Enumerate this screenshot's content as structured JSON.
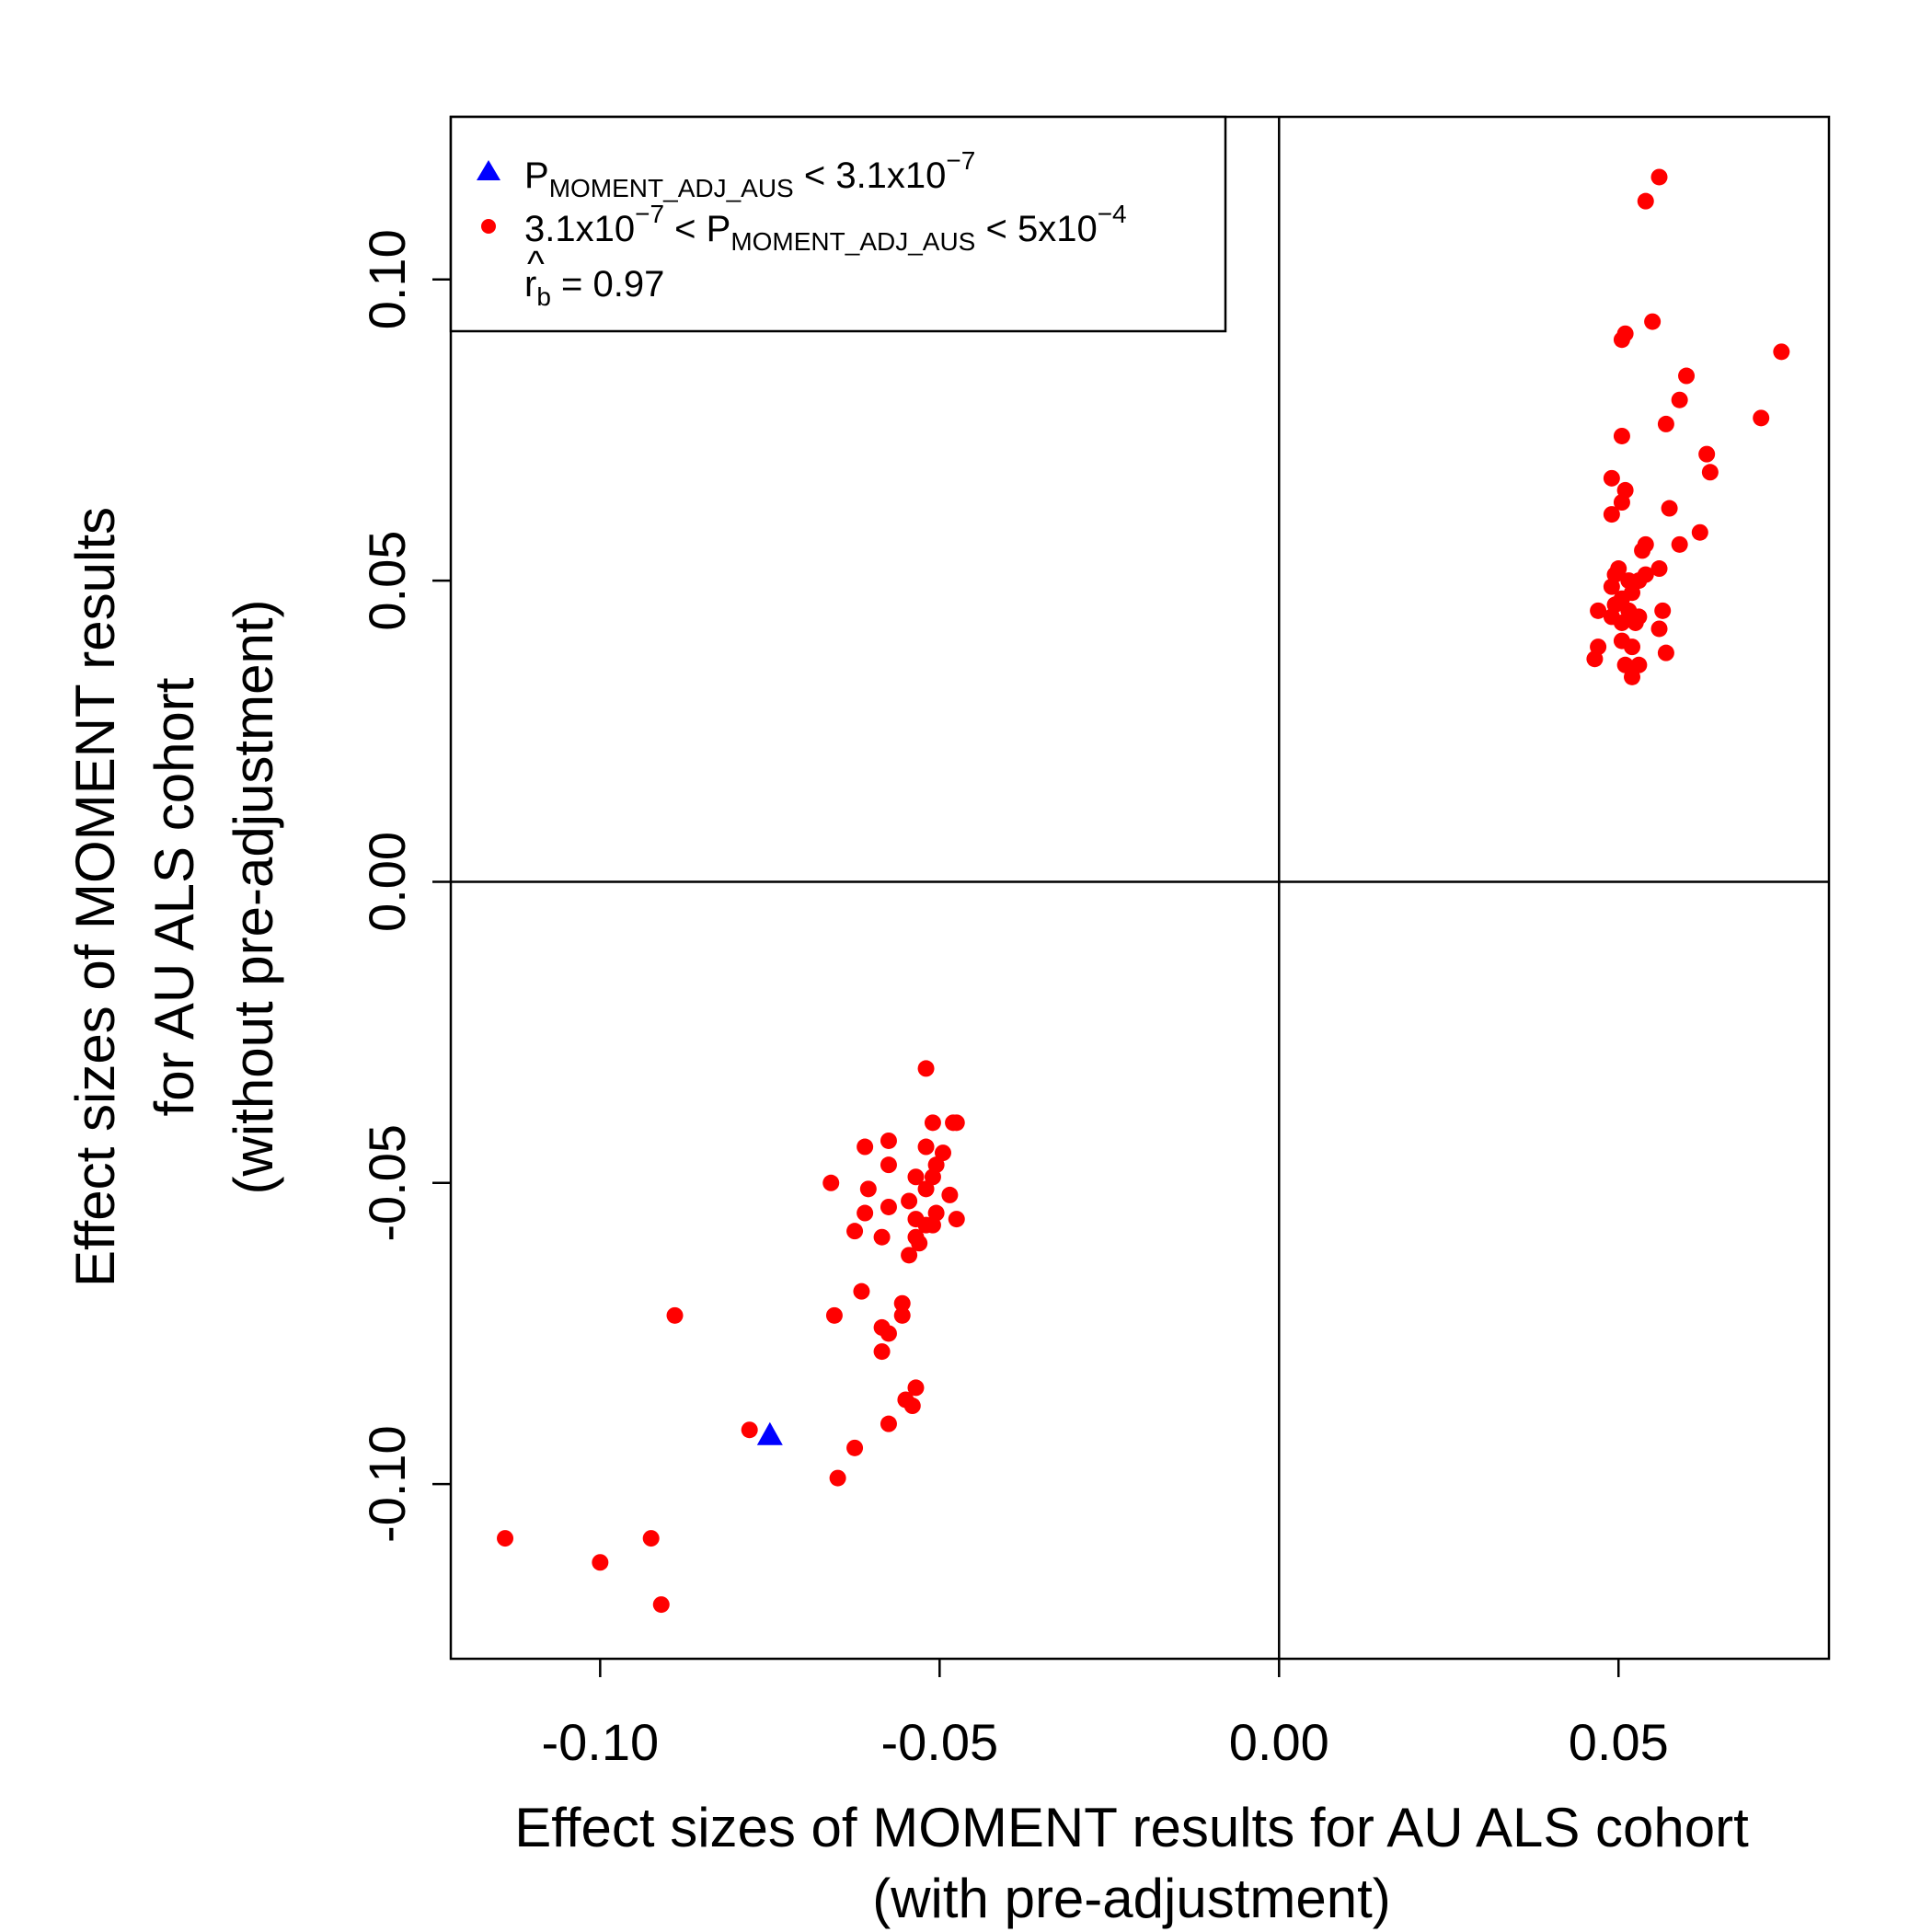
{
  "chart_data": {
    "type": "scatter",
    "xlabel": [
      "Effect sizes of MOMENT results for AU ALS cohort",
      "(with pre-adjustment)"
    ],
    "ylabel": [
      "Effect sizes of MOMENT results",
      "for AU ALS cohort",
      "(without pre-adjustment)"
    ],
    "xlim": [
      -0.122,
      0.081
    ],
    "ylim": [
      -0.129,
      0.127
    ],
    "xticks": [
      -0.1,
      -0.05,
      0.0,
      0.05
    ],
    "xtick_labels": [
      "-0.10",
      "-0.05",
      "0.00",
      "0.05"
    ],
    "yticks": [
      -0.1,
      -0.05,
      0.0,
      0.05,
      0.1
    ],
    "ytick_labels": [
      "-0.10",
      "-0.05",
      "0.00",
      "0.05",
      "0.10"
    ],
    "reference_lines": {
      "x": 0,
      "y": 0
    },
    "grid": false,
    "legend": {
      "placement": "top-left",
      "entries": [
        {
          "symbol": "triangle",
          "color": "#0000ff",
          "main": "P",
          "sub": "MOMENT_ADJ_AUS",
          "after": " < 3.1x10",
          "sup": "−7"
        },
        {
          "symbol": "circle",
          "color": "#ff0000",
          "before": "3.1x10",
          "before_sup": "−7",
          "mid": " < P",
          "sub": "MOMENT_ADJ_AUS",
          "after": " < 5x10",
          "sup": "−4"
        }
      ],
      "stat": {
        "symbol": "r",
        "hat": "^",
        "sub": "b",
        "text": " = 0.97"
      }
    },
    "series": [
      {
        "color": "#0000ff",
        "marker": "triangle",
        "points": [
          [
            -0.075,
            -0.092
          ]
        ]
      },
      {
        "color": "#ff0000",
        "marker": "circle",
        "points": [
          [
            0.056,
            0.117
          ],
          [
            0.054,
            0.113
          ],
          [
            0.055,
            0.093
          ],
          [
            0.051,
            0.091
          ],
          [
            0.0505,
            0.09
          ],
          [
            0.074,
            0.088
          ],
          [
            0.06,
            0.084
          ],
          [
            0.059,
            0.08
          ],
          [
            0.071,
            0.077
          ],
          [
            0.057,
            0.076
          ],
          [
            0.0505,
            0.074
          ],
          [
            0.063,
            0.071
          ],
          [
            0.0635,
            0.068
          ],
          [
            0.049,
            0.067
          ],
          [
            0.051,
            0.065
          ],
          [
            0.0505,
            0.063
          ],
          [
            0.0575,
            0.062
          ],
          [
            0.049,
            0.061
          ],
          [
            0.062,
            0.058
          ],
          [
            0.059,
            0.056
          ],
          [
            0.054,
            0.056
          ],
          [
            0.0535,
            0.055
          ],
          [
            0.05,
            0.052
          ],
          [
            0.056,
            0.052
          ],
          [
            0.0495,
            0.051
          ],
          [
            0.0515,
            0.05
          ],
          [
            0.053,
            0.05
          ],
          [
            0.054,
            0.051
          ],
          [
            0.049,
            0.049
          ],
          [
            0.052,
            0.048
          ],
          [
            0.0505,
            0.047
          ],
          [
            0.0495,
            0.046
          ],
          [
            0.0515,
            0.045
          ],
          [
            0.047,
            0.045
          ],
          [
            0.052,
            0.044
          ],
          [
            0.0525,
            0.043
          ],
          [
            0.049,
            0.044
          ],
          [
            0.053,
            0.044
          ],
          [
            0.0565,
            0.045
          ],
          [
            0.0505,
            0.043
          ],
          [
            0.056,
            0.042
          ],
          [
            0.0505,
            0.04
          ],
          [
            0.047,
            0.039
          ],
          [
            0.052,
            0.039
          ],
          [
            0.057,
            0.038
          ],
          [
            0.0465,
            0.037
          ],
          [
            0.051,
            0.036
          ],
          [
            0.053,
            0.036
          ],
          [
            0.052,
            0.034
          ],
          [
            -0.052,
            -0.031
          ],
          [
            -0.0475,
            -0.04
          ],
          [
            -0.048,
            -0.04
          ],
          [
            -0.051,
            -0.04
          ],
          [
            -0.0575,
            -0.043
          ],
          [
            -0.061,
            -0.044
          ],
          [
            -0.052,
            -0.044
          ],
          [
            -0.0495,
            -0.045
          ],
          [
            -0.0505,
            -0.047
          ],
          [
            -0.0575,
            -0.047
          ],
          [
            -0.051,
            -0.049
          ],
          [
            -0.0535,
            -0.049
          ],
          [
            -0.066,
            -0.05
          ],
          [
            -0.0605,
            -0.051
          ],
          [
            -0.052,
            -0.051
          ],
          [
            -0.0485,
            -0.052
          ],
          [
            -0.0545,
            -0.053
          ],
          [
            -0.0575,
            -0.054
          ],
          [
            -0.061,
            -0.055
          ],
          [
            -0.0505,
            -0.055
          ],
          [
            -0.0535,
            -0.056
          ],
          [
            -0.052,
            -0.057
          ],
          [
            -0.0475,
            -0.056
          ],
          [
            -0.0625,
            -0.058
          ],
          [
            -0.051,
            -0.057
          ],
          [
            -0.0585,
            -0.059
          ],
          [
            -0.0535,
            -0.059
          ],
          [
            -0.053,
            -0.06
          ],
          [
            -0.0545,
            -0.062
          ],
          [
            -0.0615,
            -0.068
          ],
          [
            -0.0555,
            -0.07
          ],
          [
            -0.0555,
            -0.072
          ],
          [
            -0.0655,
            -0.072
          ],
          [
            -0.089,
            -0.072
          ],
          [
            -0.0585,
            -0.074
          ],
          [
            -0.0575,
            -0.075
          ],
          [
            -0.0585,
            -0.078
          ],
          [
            -0.0535,
            -0.084
          ],
          [
            -0.055,
            -0.086
          ],
          [
            -0.054,
            -0.087
          ],
          [
            -0.0575,
            -0.09
          ],
          [
            -0.078,
            -0.091
          ],
          [
            -0.0625,
            -0.094
          ],
          [
            -0.065,
            -0.099
          ],
          [
            -0.114,
            -0.109
          ],
          [
            -0.0925,
            -0.109
          ],
          [
            -0.1,
            -0.113
          ],
          [
            -0.091,
            -0.12
          ]
        ]
      }
    ]
  }
}
